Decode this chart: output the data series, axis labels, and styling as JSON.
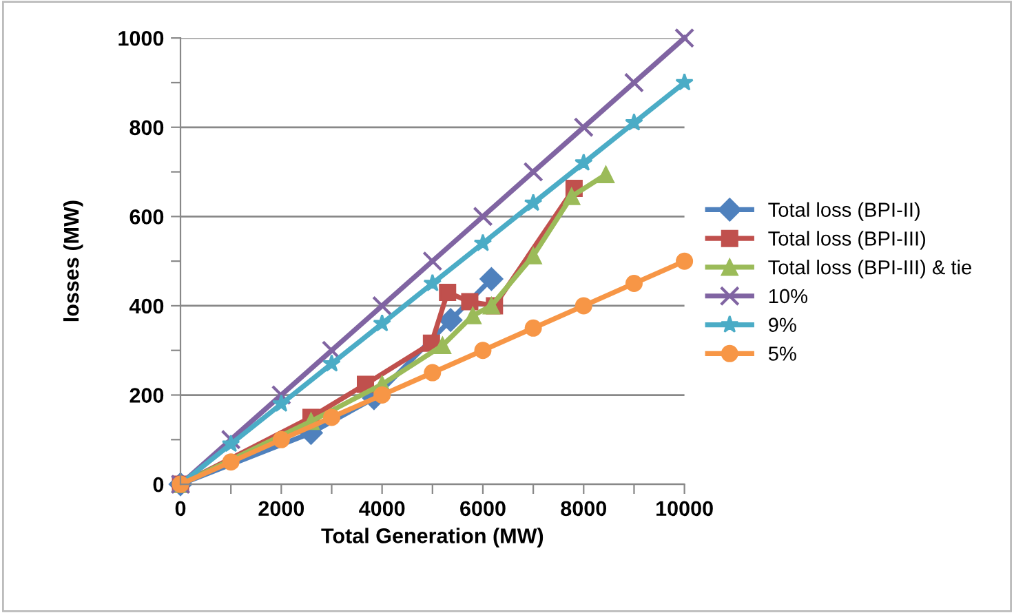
{
  "chart_data": {
    "type": "line",
    "xlabel": "Total Generation (MW)",
    "ylabel": "losses (MW)",
    "xlim": [
      0,
      10000
    ],
    "ylim": [
      0,
      1000
    ],
    "xticks": [
      0,
      {
        "value": 1000,
        "label": null
      },
      2000,
      {
        "value": 3000,
        "label": null
      },
      4000,
      {
        "value": 5000,
        "label": null
      },
      6000,
      {
        "value": 7000,
        "label": null
      },
      8000,
      {
        "value": 9000,
        "label": null
      },
      10000
    ],
    "yticks": [
      0,
      {
        "value": 100,
        "label": null
      },
      200,
      {
        "value": 300,
        "label": null
      },
      400,
      {
        "value": 500,
        "label": null
      },
      600,
      {
        "value": 700,
        "label": null
      },
      800,
      {
        "value": 900,
        "label": null
      },
      1000
    ],
    "grid": "y",
    "legend": "right",
    "series": [
      {
        "name": "Total loss (BPI-II)",
        "color": "#4f81bd",
        "marker": "diamond",
        "x": [
          0,
          2590,
          3840,
          5360,
          6170
        ],
        "values": [
          0,
          115,
          193,
          368,
          460
        ]
      },
      {
        "name": "Total loss (BPI-III)",
        "color": "#c0504d",
        "marker": "square",
        "x": [
          0,
          2590,
          3670,
          4980,
          5300,
          5740,
          6230,
          7810
        ],
        "values": [
          0,
          150,
          224,
          316,
          430,
          409,
          400,
          663
        ]
      },
      {
        "name": "Total loss (BPI-III) & tie",
        "color": "#9bbb59",
        "marker": "triangle",
        "x": [
          0,
          2590,
          4000,
          5200,
          5800,
          6170,
          7000,
          7760,
          8440
        ],
        "values": [
          0,
          141,
          224,
          311,
          378,
          400,
          512,
          645,
          694
        ]
      },
      {
        "name": "10%",
        "color": "#8064a2",
        "marker": "cross",
        "x": [
          0,
          1000,
          2000,
          3000,
          4000,
          5000,
          6000,
          7000,
          8000,
          9000,
          10000
        ],
        "values": [
          0,
          100,
          200,
          300,
          400,
          500,
          600,
          700,
          800,
          900,
          1000
        ]
      },
      {
        "name": "9%",
        "color": "#4bacc6",
        "marker": "star",
        "x": [
          0,
          1000,
          2000,
          3000,
          4000,
          5000,
          6000,
          7000,
          8000,
          9000,
          10000
        ],
        "values": [
          0,
          90,
          180,
          270,
          360,
          450,
          540,
          630,
          720,
          810,
          900
        ]
      },
      {
        "name": "5%",
        "color": "#f79646",
        "marker": "circle",
        "x": [
          0,
          1000,
          2000,
          3000,
          4000,
          5000,
          6000,
          7000,
          8000,
          9000,
          10000
        ],
        "values": [
          0,
          50,
          100,
          150,
          200,
          250,
          300,
          350,
          400,
          450,
          500
        ]
      }
    ]
  }
}
